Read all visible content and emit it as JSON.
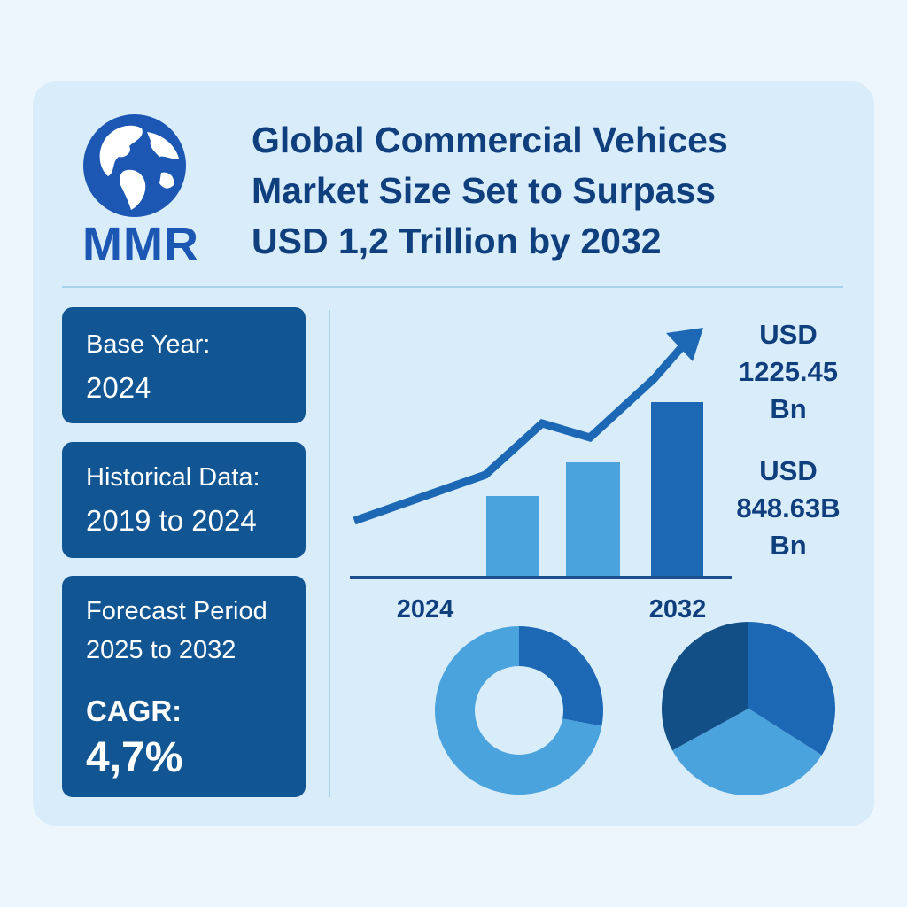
{
  "logo": {
    "text": "MMR"
  },
  "title_lines": [
    "Global Commercial Vehices",
    "Market Size Set to Surpass",
    "USD 1,2 Trillion by 2032"
  ],
  "info": {
    "base_year_label": "Base Year:",
    "base_year_value": "2024",
    "historical_label": "Historical Data:",
    "historical_value": "2019 to 2024",
    "forecast_label": "Forecast Period",
    "forecast_value": "2025 to 2032",
    "cagr_label": "CAGR:",
    "cagr_value": "4,7%"
  },
  "value_labels": {
    "high": [
      "USD",
      "1225.45",
      "Bn"
    ],
    "low": [
      "USD",
      "848.63B",
      "Bn"
    ]
  },
  "colors": {
    "dark_blue": "#125593",
    "mid_blue": "#1d68b5",
    "light_blue": "#4aa3dc",
    "navy": "#0f3f7d",
    "pie_dark": "#124f86"
  },
  "chart_data": [
    {
      "type": "bar",
      "x_tick_labels": [
        "2024",
        "2032"
      ],
      "bars": [
        {
          "value": 90,
          "color": "light"
        },
        {
          "value": 128,
          "color": "light"
        },
        {
          "value": 196,
          "color": "dark"
        }
      ],
      "trend_line": [
        {
          "x": 0,
          "y": 0
        },
        {
          "x": 1,
          "y": 52
        },
        {
          "x": 2,
          "y": 110
        },
        {
          "x": 3,
          "y": 94
        },
        {
          "x": 4,
          "y": 160
        },
        {
          "x": 5,
          "y": 208
        }
      ],
      "trend_arrow": true
    },
    {
      "type": "pie",
      "style": "donut",
      "slices": [
        {
          "value": 28,
          "color": "dark"
        },
        {
          "value": 72,
          "color": "light"
        }
      ]
    },
    {
      "type": "pie",
      "slices": [
        {
          "value": 34,
          "color": "mid"
        },
        {
          "value": 33,
          "color": "light"
        },
        {
          "value": 33,
          "color": "dark"
        }
      ]
    }
  ]
}
